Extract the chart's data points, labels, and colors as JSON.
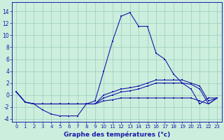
{
  "xlabel": "Graphe des températures (°c)",
  "hours": [
    0,
    1,
    2,
    3,
    4,
    5,
    6,
    7,
    8,
    9,
    10,
    11,
    12,
    13,
    14,
    15,
    16,
    17,
    18,
    19,
    20,
    21,
    22,
    23
  ],
  "curve_max": [
    0.5,
    -1.2,
    -1.5,
    -2.5,
    -3.2,
    -3.5,
    -3.5,
    -3.5,
    -1.5,
    -1.0,
    4.0,
    9.0,
    13.2,
    13.8,
    11.5,
    11.5,
    7.0,
    6.0,
    3.5,
    2.0,
    1.0,
    -1.5,
    -0.5,
    -0.5
  ],
  "curve_min": [
    0.5,
    -1.2,
    -1.5,
    -1.5,
    -1.5,
    -1.5,
    -1.5,
    -1.5,
    -1.5,
    -1.5,
    -1.0,
    -0.8,
    -0.5,
    -0.5,
    -0.5,
    -0.5,
    -0.5,
    -0.5,
    -0.5,
    -0.5,
    -0.5,
    -1.0,
    -1.5,
    -0.5
  ],
  "curve_mean1": [
    0.5,
    -1.2,
    -1.5,
    -1.5,
    -1.5,
    -1.5,
    -1.5,
    -1.5,
    -1.5,
    -1.5,
    0.0,
    0.5,
    1.0,
    1.2,
    1.5,
    2.0,
    2.5,
    2.5,
    2.5,
    2.5,
    2.0,
    1.5,
    -1.0,
    -0.5
  ],
  "curve_mean2": [
    0.5,
    -1.2,
    -1.5,
    -1.5,
    -1.5,
    -1.5,
    -1.5,
    -1.5,
    -1.5,
    -1.5,
    -0.5,
    0.0,
    0.5,
    0.7,
    1.0,
    1.5,
    2.0,
    2.0,
    2.0,
    2.0,
    1.8,
    1.0,
    -1.5,
    -0.5
  ],
  "line_color": "#1a1aaa",
  "bg_color": "#cceedd",
  "grid_color": "#99ccbb",
  "ylim": [
    -4.5,
    15.5
  ],
  "xlim": [
    -0.5,
    23.5
  ],
  "yticks": [
    -4,
    -2,
    0,
    2,
    4,
    6,
    8,
    10,
    12,
    14
  ],
  "xticks": [
    0,
    1,
    2,
    3,
    4,
    5,
    6,
    7,
    8,
    9,
    10,
    11,
    12,
    13,
    14,
    15,
    16,
    17,
    18,
    19,
    20,
    21,
    22,
    23
  ],
  "ylabel_fontsize": 5.5,
  "xlabel_fontsize": 6.5,
  "tick_fontsize": 5.0
}
